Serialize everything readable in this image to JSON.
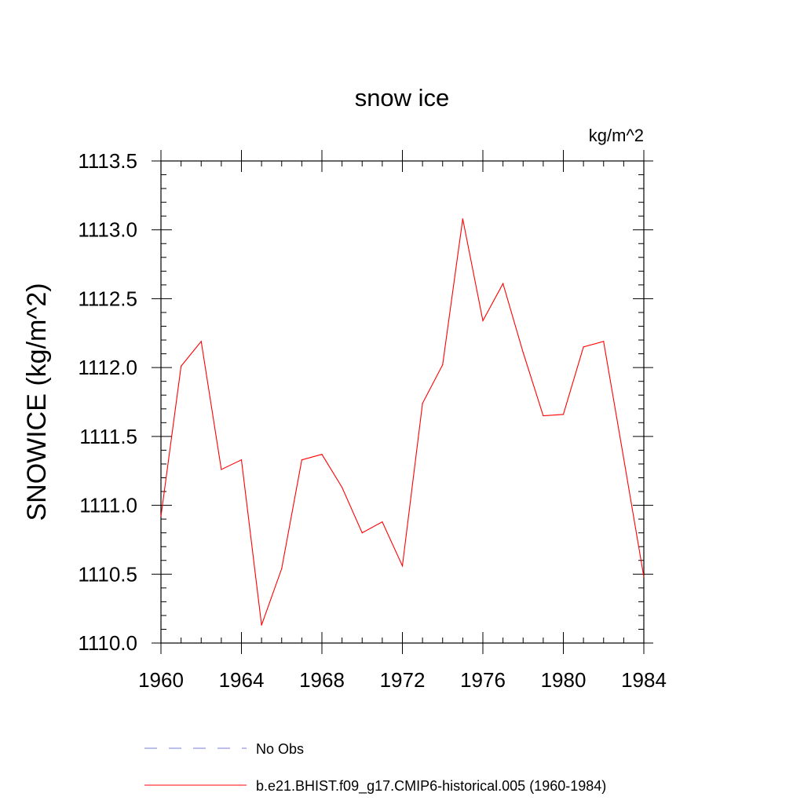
{
  "chart_data": {
    "type": "line",
    "title": "snow ice",
    "units_label": "kg/m^2",
    "ylabel": "SNOWICE  (kg/m^2)",
    "xlabel": "",
    "xlim": [
      1960,
      1984
    ],
    "ylim": [
      1110.0,
      1113.5
    ],
    "x_ticks": [
      "1960",
      "1964",
      "1968",
      "1972",
      "1976",
      "1980",
      "1984"
    ],
    "y_ticks": [
      "1110.0",
      "1110.5",
      "1111.0",
      "1111.5",
      "1112.0",
      "1112.5",
      "1113.0",
      "1113.5"
    ],
    "grid": false,
    "legend_position": "bottom",
    "series": [
      {
        "name": "b.e21.BHIST.f09_g17.CMIP6-historical.005 (1960-1984)",
        "color": "#ff0000",
        "style": "solid",
        "x": [
          1960,
          1961,
          1962,
          1963,
          1964,
          1965,
          1966,
          1967,
          1968,
          1969,
          1970,
          1971,
          1972,
          1973,
          1974,
          1975,
          1976,
          1977,
          1978,
          1979,
          1980,
          1981,
          1982,
          1983,
          1984
        ],
        "y": [
          1110.92,
          1112.01,
          1112.19,
          1111.26,
          1111.33,
          1110.13,
          1110.54,
          1111.33,
          1111.37,
          1111.13,
          1110.8,
          1110.88,
          1110.56,
          1111.74,
          1112.02,
          1113.08,
          1112.34,
          1112.61,
          1112.11,
          1111.65,
          1111.66,
          1112.15,
          1112.19,
          1111.34,
          1110.48
        ]
      }
    ],
    "legend": [
      {
        "label": "No Obs",
        "color": "#7b7bd6",
        "style": "dashed"
      },
      {
        "label": "b.e21.BHIST.f09_g17.CMIP6-historical.005 (1960-1984)",
        "color": "#ff0000",
        "style": "solid"
      }
    ]
  }
}
